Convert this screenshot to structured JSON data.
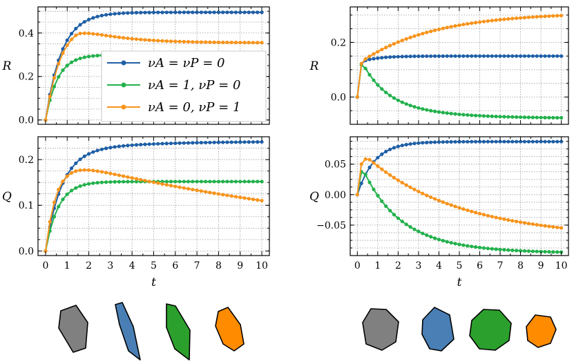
{
  "colors": {
    "blue": "#1f5fa6",
    "green": "#22b14c",
    "orange": "#f7941d",
    "gray": "#808080",
    "steelblue": "#4a7fb5",
    "darkgreen": "#2ca02c",
    "brightorange": "#ff8c00"
  },
  "legend": [
    {
      "label": "νA = νP = 0",
      "color": "blue"
    },
    {
      "label": "νA = 1, νP = 0",
      "color": "green"
    },
    {
      "label": "νA = 0, νP = 1",
      "color": "orange"
    }
  ],
  "chart_data": [
    {
      "type": "line",
      "panel": "top-left",
      "ylabel": "R",
      "xlabel": "",
      "xlim": [
        -0.35,
        10.35
      ],
      "ylim": [
        -0.02,
        0.52
      ],
      "yticks": [
        0.0,
        0.2,
        0.4
      ],
      "ytick_labels": [
        "0.0",
        "0.2",
        "0.4"
      ],
      "xticks": [
        0,
        1,
        2,
        3,
        4,
        5,
        6,
        7,
        8,
        9,
        10
      ],
      "show_xtick_labels": false,
      "series": [
        {
          "name": "νA = νP = 0",
          "color": "blue",
          "model": "sat",
          "params": [
            0.495,
            1.35
          ]
        },
        {
          "name": "νA = 1, νP = 0",
          "color": "green",
          "model": "sat",
          "params": [
            0.3,
            1.8
          ]
        },
        {
          "name": "νA = 0, νP = 1",
          "color": "orange",
          "model": "hump",
          "params": [
            0.355,
            0.13,
            2.2,
            0.55
          ]
        }
      ]
    },
    {
      "type": "line",
      "panel": "bottom-left",
      "ylabel": "Q",
      "xlabel": "t",
      "xlim": [
        -0.35,
        10.35
      ],
      "ylim": [
        -0.01,
        0.25
      ],
      "yticks": [
        0.0,
        0.1,
        0.2
      ],
      "ytick_labels": [
        "0.0",
        "0.1",
        "0.2"
      ],
      "xticks": [
        0,
        1,
        2,
        3,
        4,
        5,
        6,
        7,
        8,
        9,
        10
      ],
      "xtick_labels": [
        "0",
        "1",
        "2",
        "3",
        "4",
        "5",
        "6",
        "7",
        "8",
        "9",
        "10"
      ],
      "series": [
        {
          "name": "νA = νP = 0",
          "color": "blue",
          "model": "sat2",
          "params": [
            0.22,
            1.3,
            0.02,
            0.25
          ]
        },
        {
          "name": "νA = 1, νP = 0",
          "color": "green",
          "model": "sat",
          "params": [
            0.152,
            1.7
          ]
        },
        {
          "name": "νA = 0, νP = 1",
          "color": "orange",
          "model": "hump",
          "params": [
            0.0,
            0.212,
            2.2,
            0.11
          ]
        }
      ]
    },
    {
      "type": "line",
      "panel": "top-right",
      "ylabel": "R",
      "xlabel": "",
      "xlim": [
        -0.35,
        10.35
      ],
      "ylim": [
        -0.1,
        0.33
      ],
      "yticks": [
        0.0,
        0.2
      ],
      "ytick_labels": [
        "0.0",
        "0.2"
      ],
      "xticks": [
        0,
        1,
        2,
        3,
        4,
        5,
        6,
        7,
        8,
        9,
        10
      ],
      "show_xtick_labels": false,
      "series": [
        {
          "name": "νA = νP = 0",
          "color": "blue",
          "model": "quick",
          "params": [
            0.15,
            0.13,
            0.02,
            0.3
          ]
        },
        {
          "name": "νA = 1, νP = 0",
          "color": "green",
          "model": "drop",
          "params": [
            0.12,
            -0.075,
            0.03,
            2.3
          ]
        },
        {
          "name": "νA = 0, νP = 1",
          "color": "orange",
          "model": "quick",
          "params": [
            0.31,
            0.13,
            0.17,
            3.8
          ]
        }
      ]
    },
    {
      "type": "line",
      "panel": "bottom-right",
      "ylabel": "Q",
      "xlabel": "t",
      "xlim": [
        -0.35,
        10.35
      ],
      "ylim": [
        -0.1,
        0.095
      ],
      "yticks": [
        -0.05,
        0.0,
        0.05
      ],
      "ytick_labels": [
        "−0.05",
        "0.00",
        "0.05"
      ],
      "xticks": [
        0,
        1,
        2,
        3,
        4,
        5,
        6,
        7,
        8,
        9,
        10
      ],
      "xtick_labels": [
        "0",
        "1",
        "2",
        "3",
        "4",
        "5",
        "6",
        "7",
        "8",
        "9",
        "10"
      ],
      "series": [
        {
          "name": "νA = νP = 0",
          "color": "blue",
          "model": "sat2",
          "params": [
            0.087,
            0.8,
            0.0,
            1.0
          ]
        },
        {
          "name": "νA = 1, νP = 0",
          "color": "green",
          "model": "drop",
          "params": [
            0.036,
            -0.093,
            0.02,
            2.5
          ]
        },
        {
          "name": "νA = 0, νP = 1",
          "color": "orange",
          "model": "hump",
          "params": [
            -0.075,
            0.158,
            1.5,
            0.35
          ]
        }
      ]
    }
  ],
  "shapes": [
    {
      "color": "gray"
    },
    {
      "color": "steelblue"
    },
    {
      "color": "darkgreen"
    },
    {
      "color": "brightorange"
    },
    {
      "color": "gray"
    },
    {
      "color": "steelblue"
    },
    {
      "color": "darkgreen"
    },
    {
      "color": "brightorange"
    }
  ]
}
